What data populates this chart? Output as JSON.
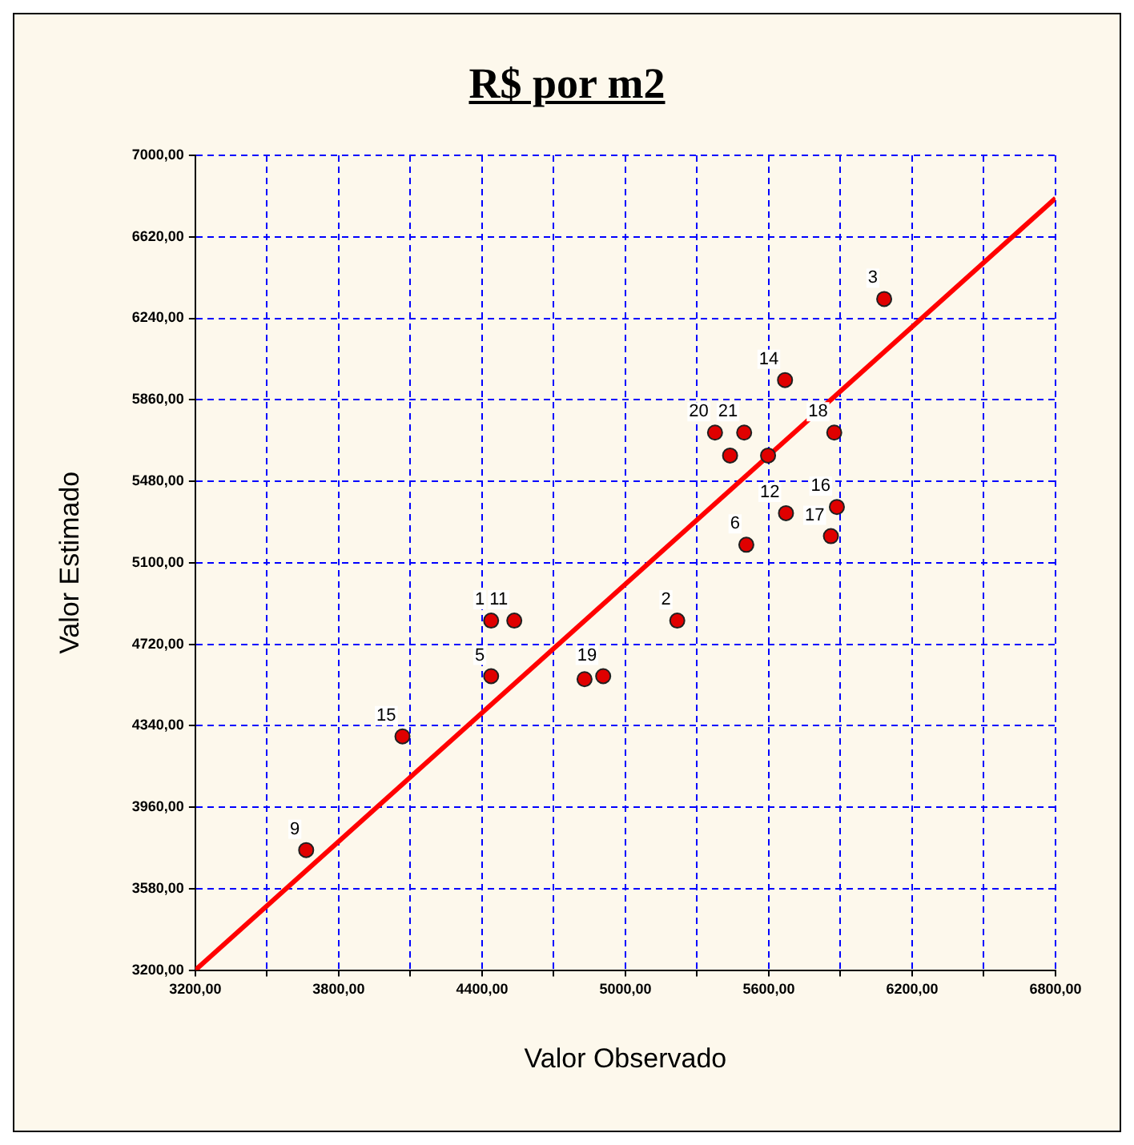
{
  "chart_data": {
    "type": "scatter",
    "title": "R$ por m2",
    "xlabel": "Valor Observado",
    "ylabel": "Valor Estimado",
    "series": [
      {
        "type": "scatter",
        "color": "#e00000",
        "x": [
          3664,
          4067,
          4438,
          4438,
          4535,
          4829,
          4907,
          5217,
          5506,
          5597,
          5672,
          5860,
          5885,
          5874,
          5668,
          6083,
          5375,
          5497,
          5438
        ],
        "values": [
          3760,
          4290,
          4571,
          4830,
          4830,
          4557,
          4571,
          4830,
          5184,
          5600,
          5331,
          5224,
          5360,
          5707,
          5952,
          6330,
          5707,
          5707,
          5600
        ]
      },
      {
        "type": "line",
        "marker": "none",
        "color": "#ff0000",
        "x": [
          3200,
          6800
        ],
        "values": [
          3200,
          6800
        ]
      }
    ],
    "annotations": [
      {
        "text": "9",
        "x": 3664,
        "y": 3760
      },
      {
        "text": "15",
        "x": 4067,
        "y": 4290
      },
      {
        "text": "5",
        "x": 4438,
        "y": 4571
      },
      {
        "text": "1",
        "x": 4438,
        "y": 4830
      },
      {
        "text": "11",
        "x": 4535,
        "y": 4830
      },
      {
        "text": "19",
        "x": 4907,
        "y": 4571
      },
      {
        "text": "2",
        "x": 5217,
        "y": 4830
      },
      {
        "text": "6",
        "x": 5506,
        "y": 5184
      },
      {
        "text": "12",
        "x": 5672,
        "y": 5331
      },
      {
        "text": "17",
        "x": 5860,
        "y": 5224
      },
      {
        "text": "16",
        "x": 5885,
        "y": 5360
      },
      {
        "text": "18",
        "x": 5874,
        "y": 5707
      },
      {
        "text": "14",
        "x": 5668,
        "y": 5952
      },
      {
        "text": "3",
        "x": 6083,
        "y": 6330
      },
      {
        "text": "20",
        "x": 5375,
        "y": 5707
      },
      {
        "text": "21",
        "x": 5497,
        "y": 5707
      }
    ],
    "xlim": [
      3200,
      6800
    ],
    "xticks": [
      {
        "value": 3200,
        "label": "3200,00"
      },
      {
        "value": 3500,
        "label": null
      },
      {
        "value": 3800,
        "label": "3800,00"
      },
      {
        "value": 4100,
        "label": null
      },
      {
        "value": 4400,
        "label": "4400,00"
      },
      {
        "value": 4700,
        "label": null
      },
      {
        "value": 5000,
        "label": "5000,00"
      },
      {
        "value": 5300,
        "label": null
      },
      {
        "value": 5600,
        "label": "5600,00"
      },
      {
        "value": 5900,
        "label": null
      },
      {
        "value": 6200,
        "label": "6200,00"
      },
      {
        "value": 6500,
        "label": null
      },
      {
        "value": 6800,
        "label": "6800,00"
      }
    ],
    "ylim": [
      3200,
      7000
    ],
    "yticks": [
      {
        "value": 3200,
        "label": "3200,00"
      },
      {
        "value": 3580,
        "label": "3580,00"
      },
      {
        "value": 3960,
        "label": "3960,00"
      },
      {
        "value": 4340,
        "label": "4340,00"
      },
      {
        "value": 4720,
        "label": "4720,00"
      },
      {
        "value": 5100,
        "label": "5100,00"
      },
      {
        "value": 5480,
        "label": "5480,00"
      },
      {
        "value": 5860,
        "label": "5860,00"
      },
      {
        "value": 6240,
        "label": "6240,00"
      },
      {
        "value": 6620,
        "label": "6620,00"
      },
      {
        "value": 7000,
        "label": "7000,00"
      }
    ],
    "grid": true,
    "marker": "circle",
    "legend": false
  }
}
